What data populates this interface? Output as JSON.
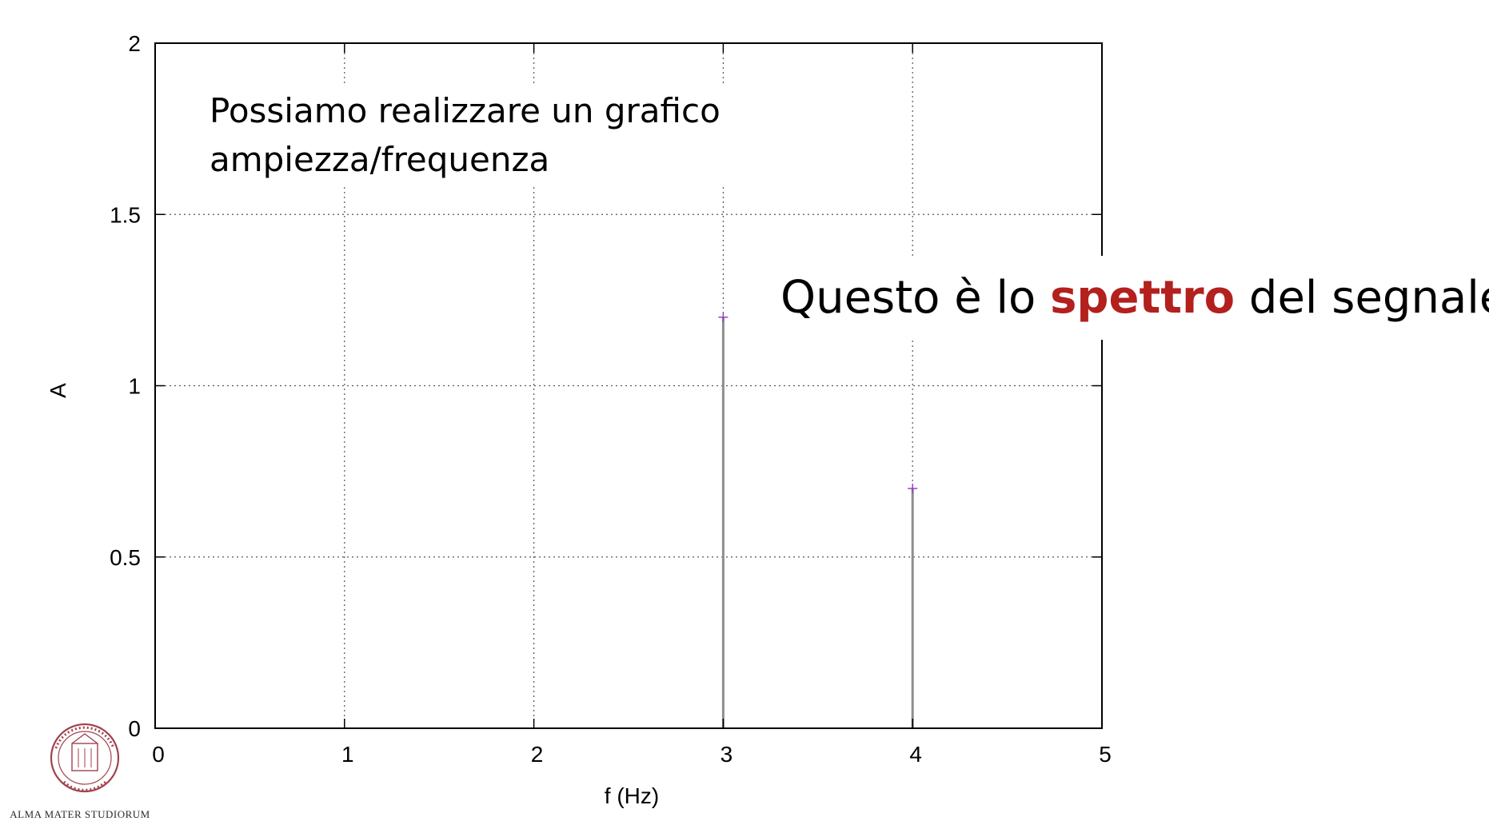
{
  "colors": {
    "stem": "#8e8e8e",
    "marker": "#9b3ec4",
    "grid": "#555555",
    "highlight": "#b3201e",
    "seal": "#a0434f"
  },
  "captions": {
    "line1": "Possiamo realizzare un grafico",
    "line2": "ampiezza/frequenza",
    "spectrum_prefix": "Questo è lo ",
    "spectrum_highlight": "spettro",
    "spectrum_suffix": " del segnale"
  },
  "logo": {
    "icon": "university-seal-icon",
    "name": "ALMA MATER STUDIORUM"
  },
  "chart_data": {
    "type": "stem",
    "xlabel": "f (Hz)",
    "ylabel": "A",
    "xlim": [
      0,
      5
    ],
    "ylim": [
      0,
      2
    ],
    "x_ticks": [
      "0",
      "1",
      "2",
      "3",
      "4",
      "5"
    ],
    "y_ticks": [
      "0",
      "0.5",
      "1",
      "1.5",
      "2"
    ],
    "grid": true,
    "points": [
      {
        "x": 3,
        "y": 1.2
      },
      {
        "x": 4,
        "y": 0.7
      }
    ]
  }
}
